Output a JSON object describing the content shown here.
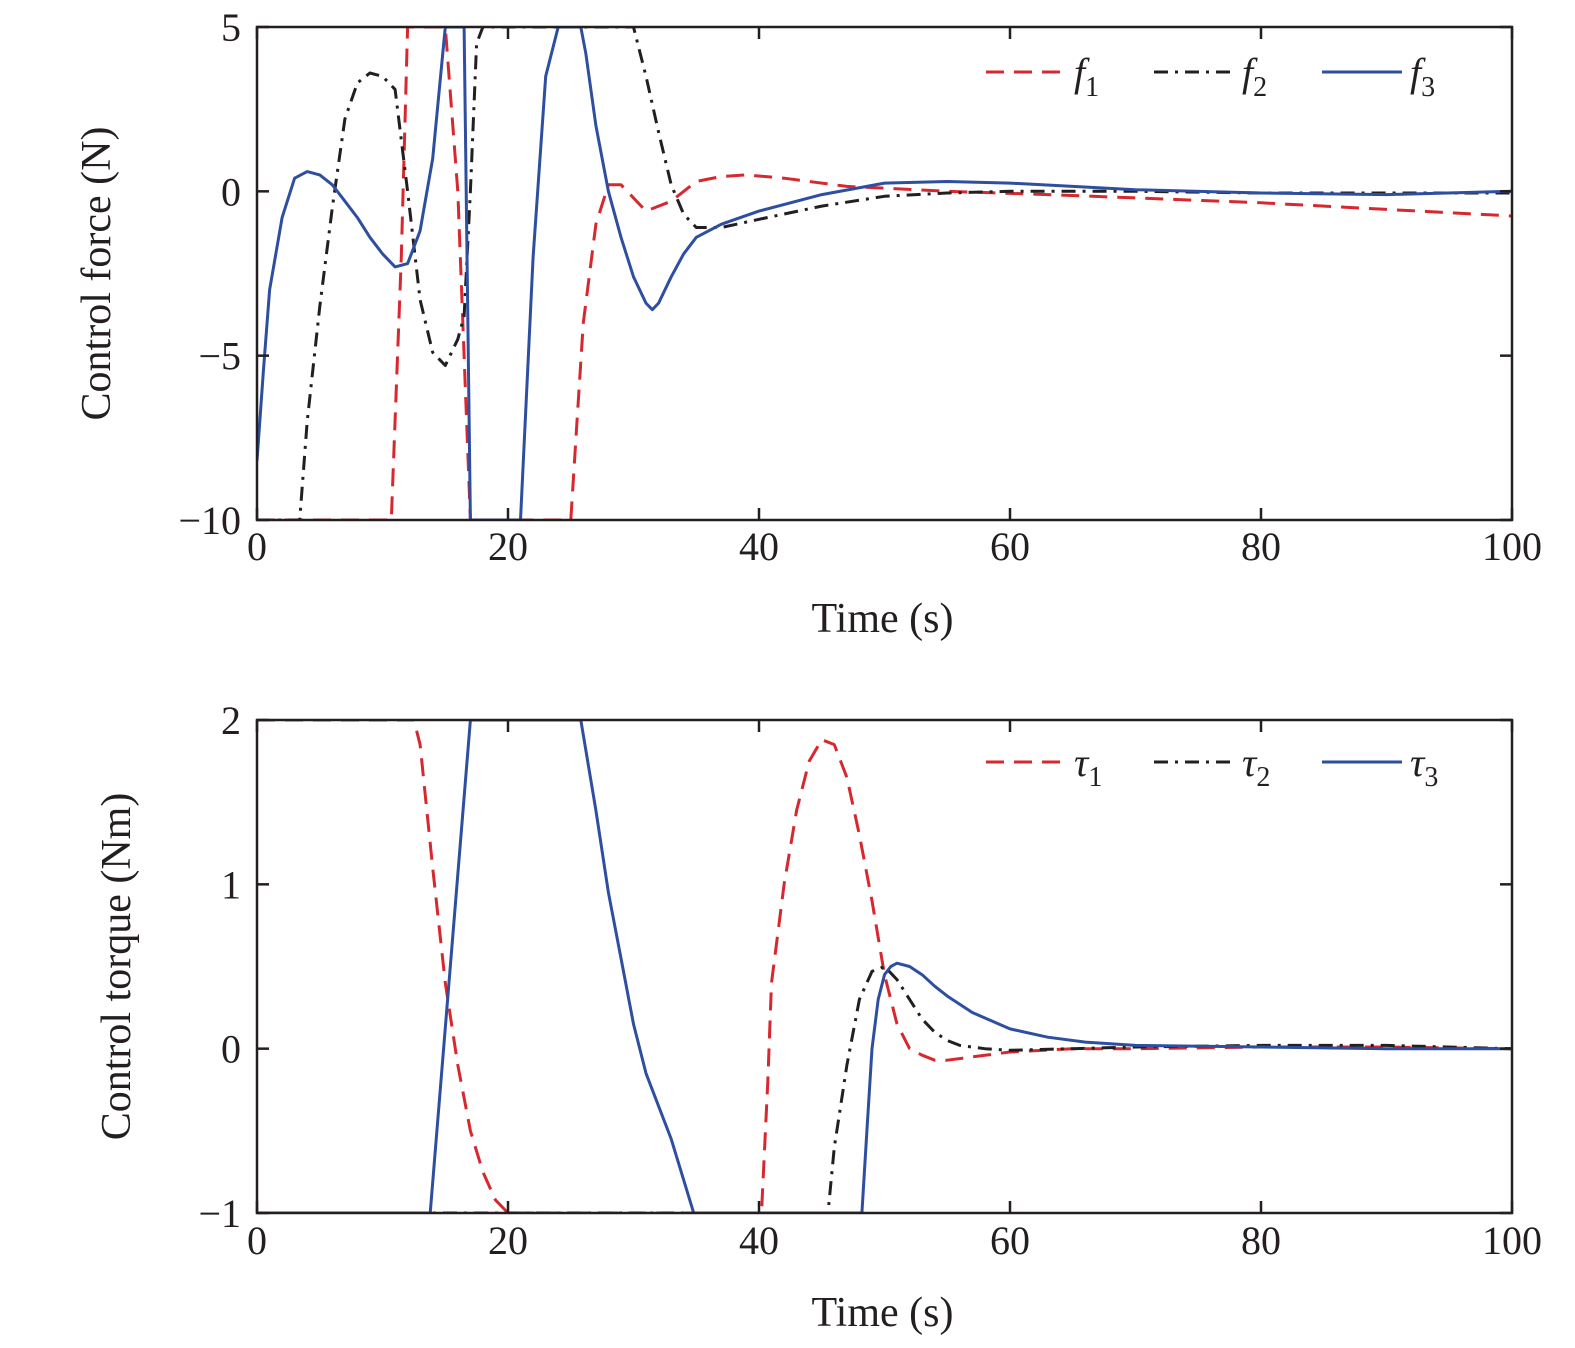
{
  "chart_data": [
    {
      "type": "line",
      "xlabel": "Time (s)",
      "ylabel": "Control force (N)",
      "xlim": [
        0,
        100
      ],
      "ylim": [
        -10,
        5
      ],
      "xticks": [
        "0",
        "20",
        "40",
        "60",
        "80",
        "100"
      ],
      "yticks": [
        "5",
        "0",
        "−5",
        "−10"
      ],
      "legend_position": "top-right",
      "series": [
        {
          "name": "f",
          "sub": "1",
          "color": "#d7282f",
          "dash": "dashed",
          "x": [
            0,
            10.7,
            11.5,
            12,
            15,
            16,
            16.5,
            17,
            25,
            25.5,
            26,
            27,
            28,
            29,
            31,
            33,
            35,
            37,
            39,
            42,
            47,
            55,
            63,
            70,
            80,
            90,
            100
          ],
          "y": [
            -10,
            -10,
            -2,
            5,
            5,
            0,
            -5,
            -10,
            -10,
            -7,
            -4,
            -1,
            0.2,
            0.2,
            -0.6,
            -0.3,
            0.3,
            0.45,
            0.5,
            0.4,
            0.15,
            0,
            -0.1,
            -0.2,
            -0.35,
            -0.55,
            -0.75
          ]
        },
        {
          "name": "f",
          "sub": "2",
          "color": "#231f20",
          "dash": "dashdot",
          "x": [
            0,
            3.4,
            4,
            5,
            6,
            7,
            8,
            9,
            10,
            11,
            12,
            13,
            14,
            15,
            16,
            16.5,
            17,
            17.5,
            18,
            30,
            31,
            32,
            33,
            34,
            35,
            36,
            37,
            40,
            45,
            50,
            55,
            60,
            70,
            80,
            90,
            100
          ],
          "y": [
            -10,
            -10,
            -7,
            -3.5,
            -0.5,
            2.2,
            3.3,
            3.6,
            3.5,
            3.1,
            0,
            -3.3,
            -4.9,
            -5.3,
            -4.5,
            -3.8,
            0,
            4.5,
            5,
            5,
            3.5,
            1.8,
            0.2,
            -0.7,
            -1.1,
            -1.1,
            -1.1,
            -0.85,
            -0.45,
            -0.15,
            -0.05,
            0,
            0,
            -0.05,
            -0.05,
            -0.05
          ]
        },
        {
          "name": "f",
          "sub": "3",
          "color": "#2e4ea0",
          "dash": "solid",
          "x": [
            0,
            0.5,
            1,
            2,
            3,
            4,
            5,
            6,
            7,
            8,
            9,
            10,
            11,
            12,
            13,
            14,
            14.5,
            15,
            16.5,
            17,
            21,
            22,
            23,
            24,
            25.8,
            26.2,
            27,
            28,
            29,
            30,
            31,
            31.5,
            32,
            33,
            34,
            35,
            37,
            40,
            45,
            50,
            55,
            60,
            65,
            70,
            80,
            90,
            100
          ],
          "y": [
            -8.2,
            -5.5,
            -3,
            -0.8,
            0.4,
            0.6,
            0.5,
            0.2,
            -0.3,
            -0.8,
            -1.4,
            -1.9,
            -2.3,
            -2.2,
            -1.2,
            1,
            3,
            5,
            5,
            -10,
            -10,
            -2,
            3.5,
            5,
            5,
            4.2,
            2,
            0,
            -1.4,
            -2.6,
            -3.4,
            -3.6,
            -3.4,
            -2.6,
            -1.9,
            -1.4,
            -1,
            -0.6,
            -0.1,
            0.25,
            0.3,
            0.25,
            0.15,
            0.05,
            -0.05,
            -0.1,
            0
          ]
        }
      ]
    },
    {
      "type": "line",
      "xlabel": "Time (s)",
      "ylabel": "Control torque (Nm)",
      "xlim": [
        0,
        100
      ],
      "ylim": [
        -1,
        2
      ],
      "xticks": [
        "0",
        "20",
        "40",
        "60",
        "80",
        "100"
      ],
      "yticks": [
        "2",
        "1",
        "0",
        "−1"
      ],
      "legend_position": "top-right",
      "series": [
        {
          "name": "τ",
          "sub": "1",
          "color": "#d7282f",
          "dash": "dashed",
          "x": [
            0,
            12.5,
            13,
            14,
            15,
            16,
            17,
            18,
            19,
            20,
            32,
            40.2,
            40.7,
            41,
            42,
            43,
            44,
            45,
            46,
            47,
            48,
            49,
            50,
            51,
            52,
            53,
            54,
            55,
            57,
            60,
            65,
            70,
            80,
            90,
            100
          ],
          "y": [
            2,
            2,
            1.85,
            1.1,
            0.4,
            -0.1,
            -0.5,
            -0.75,
            -0.92,
            -1,
            -1,
            -1,
            -0.2,
            0.4,
            1,
            1.45,
            1.75,
            1.88,
            1.85,
            1.65,
            1.3,
            0.9,
            0.45,
            0.15,
            0,
            -0.04,
            -0.07,
            -0.07,
            -0.05,
            -0.02,
            0,
            0,
            0.01,
            0.01,
            0
          ]
        },
        {
          "name": "τ",
          "sub": "2",
          "color": "#231f20",
          "dash": "dashdot",
          "x": [
            0,
            45.5,
            46,
            47,
            48,
            49,
            50,
            51,
            52,
            53,
            54,
            55,
            56,
            58,
            60,
            65,
            70,
            80,
            90,
            100
          ],
          "y": [
            -1,
            -1,
            -0.6,
            -0.1,
            0.3,
            0.47,
            0.5,
            0.42,
            0.3,
            0.18,
            0.1,
            0.05,
            0.02,
            0,
            -0.01,
            0,
            0.01,
            0.02,
            0.02,
            0
          ]
        },
        {
          "name": "τ",
          "sub": "3",
          "color": "#2e4ea0",
          "dash": "solid",
          "x": [
            0,
            13.8,
            17,
            25.8,
            27,
            28,
            29,
            30,
            31,
            32,
            33,
            34,
            34.8,
            48.2,
            48.6,
            49,
            49.5,
            50,
            50.5,
            51,
            52,
            53,
            54,
            55,
            57,
            60,
            63,
            66,
            70,
            80,
            90,
            100
          ],
          "y": [
            -1,
            -1,
            2,
            2,
            1.45,
            0.95,
            0.55,
            0.15,
            -0.15,
            -0.35,
            -0.55,
            -0.8,
            -1,
            -1,
            -0.5,
            0,
            0.3,
            0.45,
            0.5,
            0.52,
            0.5,
            0.45,
            0.38,
            0.32,
            0.22,
            0.12,
            0.07,
            0.04,
            0.02,
            0.01,
            0,
            0
          ]
        }
      ]
    }
  ]
}
